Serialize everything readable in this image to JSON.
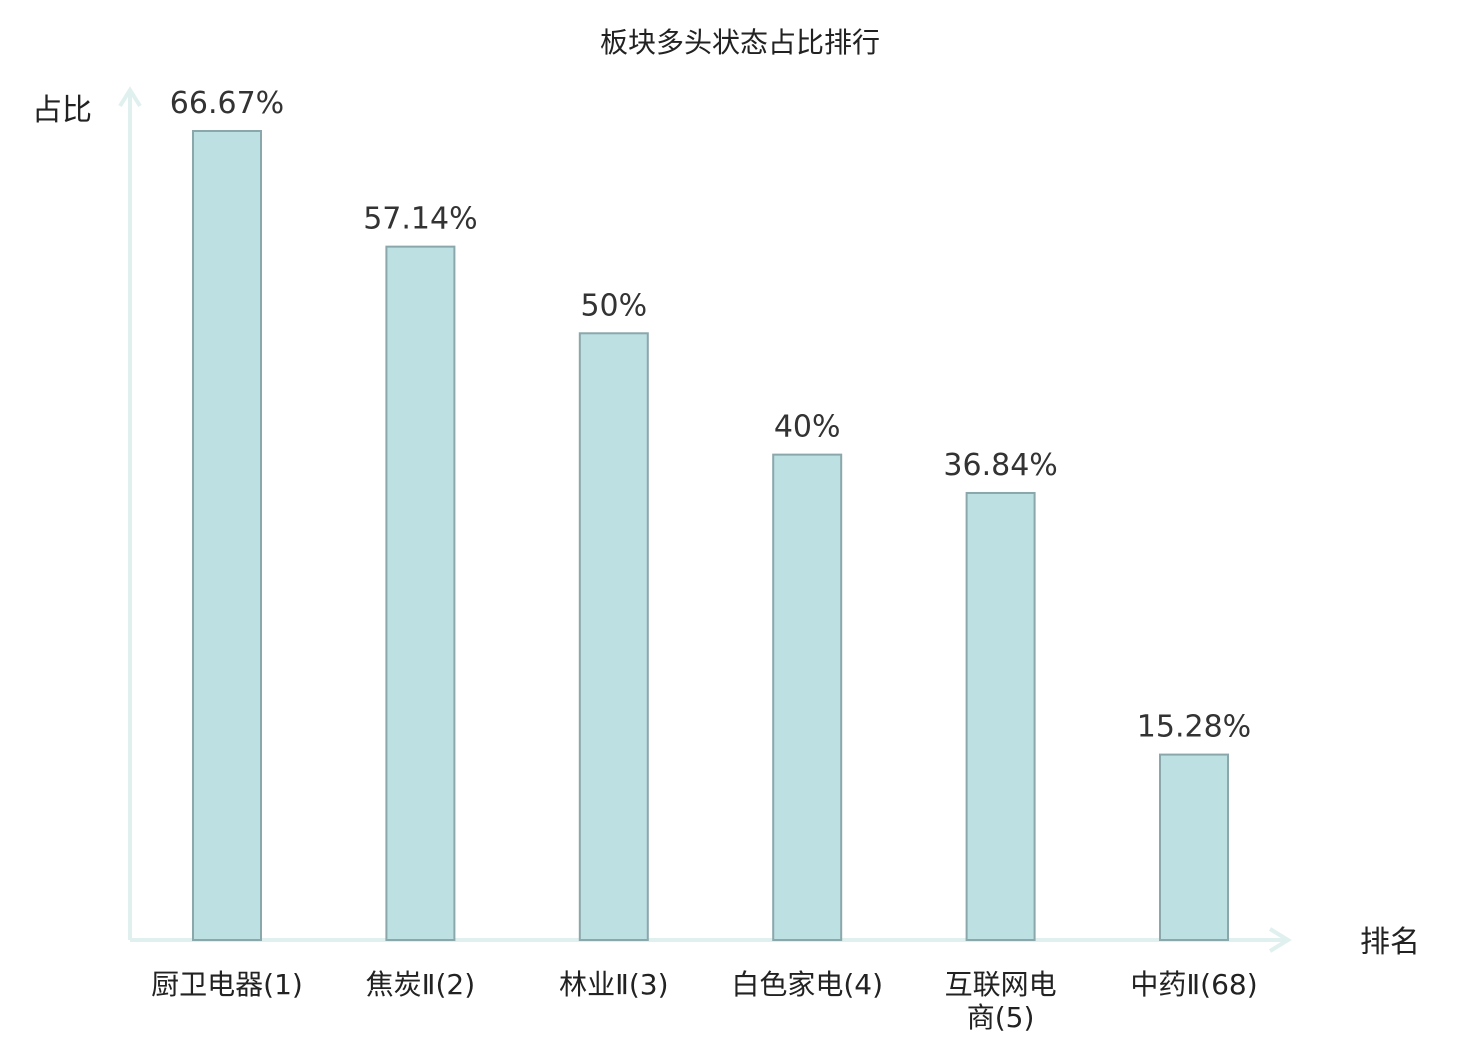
{
  "chart_data": {
    "type": "bar",
    "title": "板块多头状态占比排行",
    "ylabel": "占比",
    "xlabel": "排名",
    "categories": [
      "厨卫电器(1)",
      "焦炭Ⅱ(2)",
      "林业Ⅱ(3)",
      "白色家电(4)",
      "互联网电商(5)",
      "中药Ⅱ(68)"
    ],
    "category_lines": [
      [
        "厨卫电器(1)"
      ],
      [
        "焦炭Ⅱ(2)"
      ],
      [
        "林业Ⅱ(3)"
      ],
      [
        "白色家电(4)"
      ],
      [
        "互联网电",
        "商(5)"
      ],
      [
        "中药Ⅱ(68)"
      ]
    ],
    "values": [
      66.67,
      57.14,
      50,
      40,
      36.84,
      15.28
    ],
    "value_labels": [
      "66.67%",
      "57.14%",
      "50%",
      "40%",
      "36.84%",
      "15.28%"
    ],
    "highlight_index": 5,
    "ylim": [
      0,
      70
    ],
    "grid": false,
    "legend": "none",
    "colors": {
      "bar_fill": "#bde0e3",
      "bar_stroke": "#8aa7ab",
      "axis": "#dff0ee",
      "highlight_label": "#e41e1e",
      "text": "#222222"
    }
  }
}
